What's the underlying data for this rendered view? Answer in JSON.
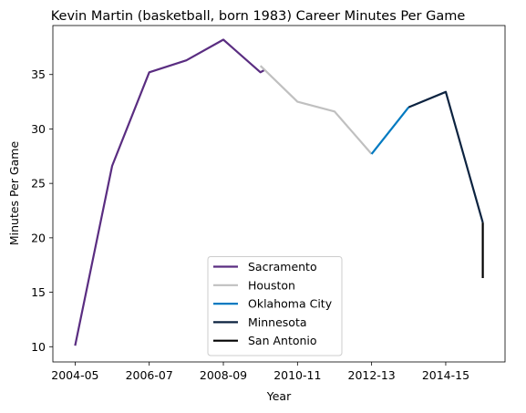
{
  "chart_data": {
    "type": "line",
    "title": "Kevin Martin (basketball, born 1983) Career Minutes Per Game",
    "xlabel": "Year",
    "ylabel": "Minutes Per Game",
    "x_tick_labels": [
      "2004-05",
      "2006-07",
      "2008-09",
      "2010-11",
      "2012-13",
      "2014-15"
    ],
    "x_tick_positions": [
      0,
      2,
      4,
      6,
      8,
      10
    ],
    "xlim": [
      -0.6,
      11.6
    ],
    "y_ticks": [
      10,
      15,
      20,
      25,
      30,
      35
    ],
    "ylim": [
      8.6,
      39.5
    ],
    "grid": false,
    "legend_position": "lower center",
    "series": [
      {
        "name": "Sacramento",
        "color": "#5a2d81",
        "points": [
          [
            0,
            10.1
          ],
          [
            1,
            26.6
          ],
          [
            2,
            35.2
          ],
          [
            3,
            36.3
          ],
          [
            4,
            38.2
          ],
          [
            5,
            35.2
          ],
          [
            5.1,
            35.4
          ]
        ]
      },
      {
        "name": "Houston",
        "color": "#c0c0c0",
        "points": [
          [
            5,
            35.8
          ],
          [
            6,
            32.5
          ],
          [
            7,
            31.6
          ],
          [
            8,
            27.7
          ]
        ]
      },
      {
        "name": "Oklahoma City",
        "color": "#007ac1",
        "points": [
          [
            8,
            27.7
          ],
          [
            9,
            32.0
          ]
        ]
      },
      {
        "name": "Minnesota",
        "color": "#0c2340",
        "points": [
          [
            9,
            32.0
          ],
          [
            10,
            33.4
          ],
          [
            11,
            21.4
          ]
        ]
      },
      {
        "name": "San Antonio",
        "color": "#000000",
        "points": [
          [
            11,
            21.4
          ],
          [
            11,
            16.3
          ]
        ]
      }
    ]
  }
}
